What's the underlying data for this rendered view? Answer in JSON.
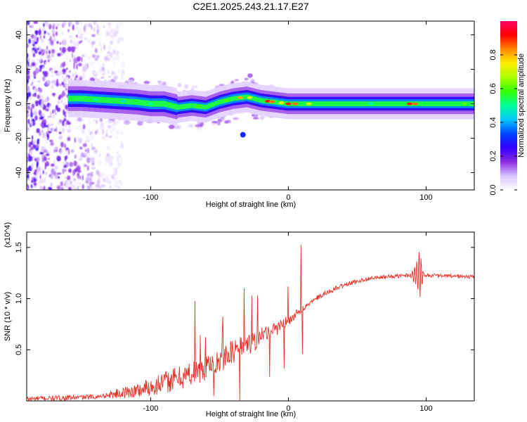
{
  "title": "C2E1.2025.243.21.17.E27",
  "chart_data": [
    {
      "type": "heatmap",
      "xlabel": "Height of straight line (km)",
      "ylabel": "Frequency (Hz)",
      "xlim": [
        -190,
        135
      ],
      "ylim": [
        -50,
        48
      ],
      "xticks": [
        -100,
        0,
        100
      ],
      "yticks": [
        40,
        20,
        0,
        -20,
        -40
      ],
      "colorbar": {
        "label": "Normalized spectral amplitude",
        "ticks": [
          0.0,
          0.2,
          0.4,
          0.6,
          0.8
        ],
        "range": [
          0,
          1
        ],
        "colors": [
          "#ffffff",
          "#d9c2ff",
          "#8a2be2",
          "#3300ff",
          "#0044ff",
          "#00c8ff",
          "#00ff99",
          "#33ff00",
          "#aaff00",
          "#ffee00",
          "#ff8800",
          "#ff0000",
          "#ff0066"
        ]
      },
      "ridge": {
        "x": [
          -150,
          -130,
          -110,
          -100,
          -90,
          -80,
          -70,
          -60,
          -50,
          -40,
          -30,
          -20,
          -10,
          0,
          20,
          50,
          90,
          135
        ],
        "freq": [
          3,
          2,
          1,
          0,
          0,
          -2,
          -1,
          -2,
          1,
          3,
          4,
          2,
          1,
          0,
          0,
          0,
          0,
          0
        ]
      },
      "isolated_blob": {
        "x": -33,
        "freq": -18
      }
    },
    {
      "type": "line",
      "xlabel": "Height of straight line (km)",
      "ylabel": "SNR (10 * v/v)",
      "yscale_label": "(x10^4)",
      "xlim": [
        -190,
        135
      ],
      "ylim": [
        0,
        1.65
      ],
      "xticks": [
        -100,
        0,
        100
      ],
      "yticks": [
        0.5,
        1.0,
        1.5
      ],
      "ytick_labels": [
        "0.5",
        "1.0",
        "1.5"
      ],
      "series": [
        {
          "name": "SNR",
          "color": "#e8332a",
          "x": [
            -190,
            -160,
            -140,
            -130,
            -120,
            -110,
            -100,
            -90,
            -80,
            -70,
            -60,
            -50,
            -40,
            -30,
            -20,
            -10,
            0,
            10,
            20,
            30,
            40,
            50,
            60,
            70,
            80,
            90,
            95,
            100,
            110,
            120,
            135
          ],
          "y": [
            0.02,
            0.03,
            0.04,
            0.06,
            0.08,
            0.1,
            0.14,
            0.18,
            0.22,
            0.27,
            0.33,
            0.4,
            0.48,
            0.55,
            0.62,
            0.7,
            0.78,
            0.9,
            1.0,
            1.07,
            1.13,
            1.17,
            1.2,
            1.21,
            1.22,
            1.23,
            1.24,
            1.23,
            1.22,
            1.22,
            1.21
          ]
        }
      ]
    }
  ]
}
